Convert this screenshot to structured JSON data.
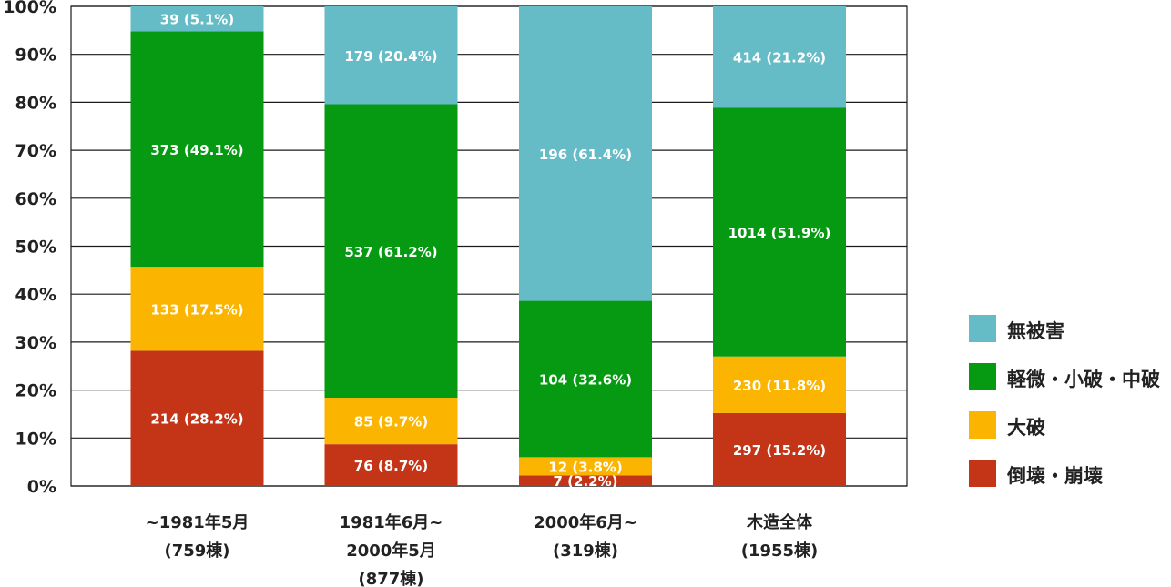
{
  "chart_data": {
    "type": "bar",
    "stacked": true,
    "normalized_percent": true,
    "categories": [
      [
        "~1981年5月",
        "(759棟)"
      ],
      [
        "1981年6月~",
        "2000年5月",
        "(877棟)"
      ],
      [
        "2000年6月~",
        "(319棟)"
      ],
      [
        "木造全体",
        "(1955棟)"
      ]
    ],
    "yticks": [
      "0%",
      "10%",
      "20%",
      "30%",
      "40%",
      "50%",
      "60%",
      "70%",
      "80%",
      "90%",
      "100%"
    ],
    "ylim": [
      0,
      100
    ],
    "grid": true,
    "legend_position": "right",
    "series": [
      {
        "name": "倒壊・崩壊",
        "color": "#c43417",
        "percents": [
          28.2,
          8.7,
          2.2,
          15.2
        ],
        "labels": [
          "214 (28.2%)",
          "76 (8.7%)",
          "7 (2.2%)",
          "297 (15.2%)"
        ]
      },
      {
        "name": "大破",
        "color": "#fbb500",
        "percents": [
          17.5,
          9.7,
          3.8,
          11.8
        ],
        "labels": [
          "133 (17.5%)",
          "85 (9.7%)",
          "12 (3.8%)",
          "230 (11.8%)"
        ]
      },
      {
        "name": "軽微・小破・中破",
        "color": "#059a12",
        "percents": [
          49.1,
          61.2,
          32.6,
          51.9
        ],
        "labels": [
          "373 (49.1%)",
          "537 (61.2%)",
          "104 (32.6%)",
          "1014 (51.9%)"
        ]
      },
      {
        "name": "無被害",
        "color": "#66bcc6",
        "percents": [
          5.1,
          20.4,
          61.4,
          21.2
        ],
        "labels": [
          "39 (5.1%)",
          "179 (20.4%)",
          "196 (61.4%)",
          "414 (21.2%)"
        ]
      }
    ]
  }
}
